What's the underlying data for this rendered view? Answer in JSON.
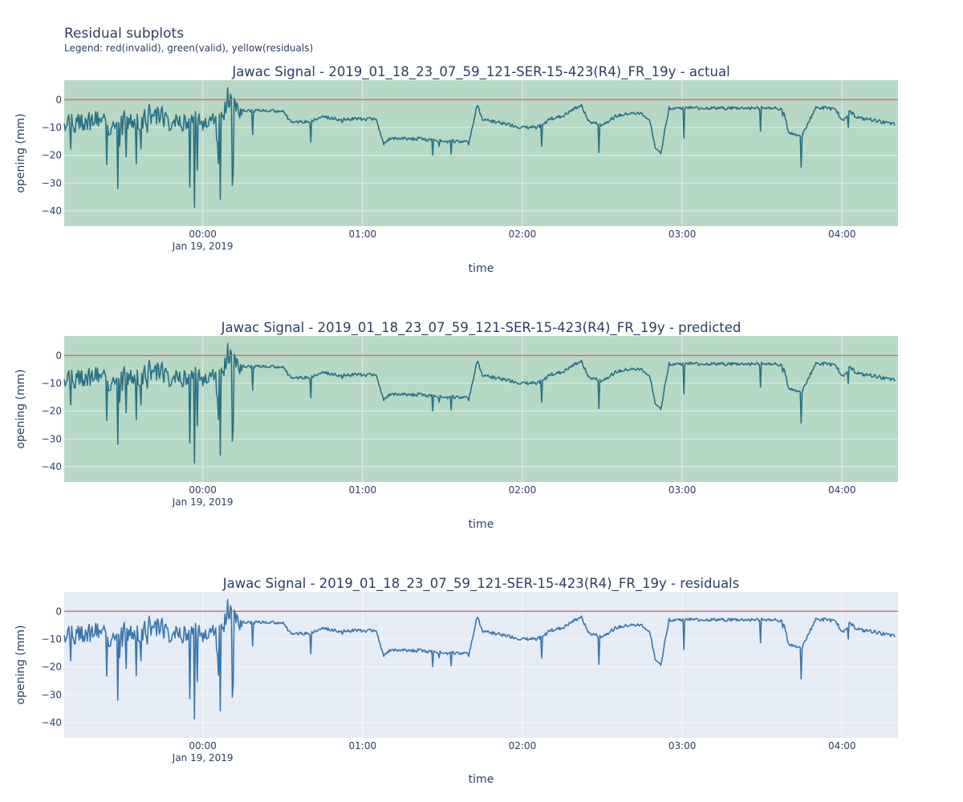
{
  "figure": {
    "title": "Residual subplots",
    "subtitle": "Legend: red(invalid), green(valid), yellow(residuals)"
  },
  "colors": {
    "valid_background": "#b7d8c5",
    "default_background": "#e5ecf6",
    "threshold_line": "#e45756",
    "series_on_valid": "#2a7186",
    "series_on_default": "#3a76ab",
    "text": "#2a3f5f"
  },
  "chart_data": [
    {
      "type": "line",
      "title": "Jawac Signal - 2019_01_18_23_07_59_121-SER-15-423(R4)_FR_19y - actual",
      "xlabel": "time",
      "ylabel": "opening (mm)",
      "background": "green(valid)",
      "x_range": [
        "2019-01-18 23:07:59",
        "2019-01-19 04:21:00"
      ],
      "x_ticks": [
        "00:00",
        "01:00",
        "02:00",
        "03:00",
        "04:00"
      ],
      "x_tick_date_label": "Jan 19, 2019",
      "ylim": [
        -45.5,
        7
      ],
      "y_ticks": [
        0,
        -10,
        -20,
        -30,
        -40
      ],
      "grid": true,
      "threshold": {
        "y": 0,
        "color": "red"
      },
      "series": [
        {
          "x": [
            "23:08",
            "23:15",
            "23:20",
            "23:25",
            "23:28",
            "23:30",
            "23:35",
            "23:40",
            "23:45",
            "23:48",
            "23:50",
            "23:55",
            "23:58",
            "00:00",
            "00:03",
            "00:06",
            "00:08",
            "00:10",
            "00:12",
            "00:15",
            "00:20",
            "00:25",
            "00:30",
            "00:33",
            "00:35",
            "00:40",
            "00:45",
            "00:50",
            "00:55",
            "01:00",
            "01:05",
            "01:08",
            "01:10",
            "01:12",
            "01:15",
            "01:20",
            "01:30",
            "01:40",
            "01:43",
            "01:45",
            "01:50",
            "02:00",
            "02:05",
            "02:08",
            "02:10",
            "02:15",
            "02:20",
            "02:22",
            "02:25",
            "02:30",
            "02:35",
            "02:40",
            "02:45",
            "02:48",
            "02:50",
            "02:52",
            "02:55",
            "03:00",
            "03:10",
            "03:20",
            "03:30",
            "03:35",
            "03:38",
            "03:40",
            "03:45",
            "03:50",
            "03:55",
            "03:58",
            "04:00",
            "04:03",
            "04:05",
            "04:08",
            "04:10",
            "04:15",
            "04:20"
          ],
          "y": [
            -8,
            -9,
            -6,
            -10,
            -8,
            -7,
            -9,
            -5,
            -6,
            -10,
            -8,
            -9,
            -7,
            -8,
            -6,
            -9,
            -4,
            0,
            -2,
            -4,
            -4,
            -4,
            -4,
            -8,
            -8,
            -8,
            -6,
            -7,
            -7,
            -7,
            -7,
            -16,
            -14,
            -14,
            -14,
            -14,
            -15,
            -15,
            -2,
            -7,
            -8,
            -10,
            -10,
            -9,
            -7,
            -6,
            -3,
            -2,
            -8,
            -9,
            -6,
            -5,
            -5,
            -8,
            -18,
            -19,
            -3,
            -3,
            -3,
            -3,
            -3,
            -3,
            -4,
            -12,
            -13,
            -3,
            -3,
            -4,
            -8,
            -4,
            -6,
            -7,
            -7,
            -8,
            -9
          ]
        }
      ]
    },
    {
      "type": "line",
      "title": "Jawac Signal - 2019_01_18_23_07_59_121-SER-15-423(R4)_FR_19y - predicted",
      "xlabel": "time",
      "ylabel": "opening (mm)",
      "background": "green(valid)",
      "x_range": [
        "2019-01-18 23:07:59",
        "2019-01-19 04:21:00"
      ],
      "x_ticks": [
        "00:00",
        "01:00",
        "02:00",
        "03:00",
        "04:00"
      ],
      "x_tick_date_label": "Jan 19, 2019",
      "ylim": [
        -45.5,
        7
      ],
      "y_ticks": [
        0,
        -10,
        -20,
        -30,
        -40
      ],
      "grid": true,
      "threshold": {
        "y": 0,
        "color": "red"
      },
      "series": [
        {
          "x": [
            "23:08",
            "23:15",
            "23:20",
            "23:25",
            "23:28",
            "23:30",
            "23:35",
            "23:40",
            "23:45",
            "23:48",
            "23:50",
            "23:55",
            "23:58",
            "00:00",
            "00:03",
            "00:06",
            "00:08",
            "00:10",
            "00:12",
            "00:15",
            "00:20",
            "00:25",
            "00:30",
            "00:33",
            "00:35",
            "00:40",
            "00:45",
            "00:50",
            "00:55",
            "01:00",
            "01:05",
            "01:08",
            "01:10",
            "01:12",
            "01:15",
            "01:20",
            "01:30",
            "01:40",
            "01:43",
            "01:45",
            "01:50",
            "02:00",
            "02:05",
            "02:08",
            "02:10",
            "02:15",
            "02:20",
            "02:22",
            "02:25",
            "02:30",
            "02:35",
            "02:40",
            "02:45",
            "02:48",
            "02:50",
            "02:52",
            "02:55",
            "03:00",
            "03:10",
            "03:20",
            "03:30",
            "03:35",
            "03:38",
            "03:40",
            "03:45",
            "03:50",
            "03:55",
            "03:58",
            "04:00",
            "04:03",
            "04:05",
            "04:08",
            "04:10",
            "04:15",
            "04:20"
          ],
          "y": [
            -8,
            -9,
            -6,
            -10,
            -8,
            -7,
            -9,
            -5,
            -6,
            -10,
            -8,
            -9,
            -7,
            -8,
            -6,
            -9,
            -4,
            0,
            -2,
            -4,
            -4,
            -4,
            -4,
            -8,
            -8,
            -8,
            -6,
            -7,
            -7,
            -7,
            -7,
            -16,
            -14,
            -14,
            -14,
            -14,
            -15,
            -15,
            -2,
            -7,
            -8,
            -10,
            -10,
            -9,
            -7,
            -6,
            -3,
            -2,
            -8,
            -9,
            -6,
            -5,
            -5,
            -8,
            -18,
            -19,
            -3,
            -3,
            -3,
            -3,
            -3,
            -3,
            -4,
            -12,
            -13,
            -3,
            -3,
            -4,
            -8,
            -4,
            -6,
            -7,
            -7,
            -8,
            -9
          ]
        }
      ]
    },
    {
      "type": "line",
      "title": "Jawac Signal - 2019_01_18_23_07_59_121-SER-15-423(R4)_FR_19y - residuals",
      "xlabel": "time",
      "ylabel": "opening (mm)",
      "background": "default",
      "x_range": [
        "2019-01-18 23:07:59",
        "2019-01-19 04:21:00"
      ],
      "x_ticks": [
        "00:00",
        "01:00",
        "02:00",
        "03:00",
        "04:00"
      ],
      "x_tick_date_label": "Jan 19, 2019",
      "ylim": [
        -45.5,
        7
      ],
      "y_ticks": [
        0,
        -10,
        -20,
        -30,
        -40
      ],
      "grid": true,
      "threshold": {
        "y": 0,
        "color": "red"
      },
      "series": [
        {
          "x": [
            "23:08",
            "23:15",
            "23:20",
            "23:25",
            "23:28",
            "23:30",
            "23:35",
            "23:40",
            "23:45",
            "23:48",
            "23:50",
            "23:55",
            "23:58",
            "00:00",
            "00:03",
            "00:06",
            "00:08",
            "00:10",
            "00:12",
            "00:15",
            "00:20",
            "00:25",
            "00:30",
            "00:33",
            "00:35",
            "00:40",
            "00:45",
            "00:50",
            "00:55",
            "01:00",
            "01:05",
            "01:08",
            "01:10",
            "01:12",
            "01:15",
            "01:20",
            "01:30",
            "01:40",
            "01:43",
            "01:45",
            "01:50",
            "02:00",
            "02:05",
            "02:08",
            "02:10",
            "02:15",
            "02:20",
            "02:22",
            "02:25",
            "02:30",
            "02:35",
            "02:40",
            "02:45",
            "02:48",
            "02:50",
            "02:52",
            "02:55",
            "03:00",
            "03:10",
            "03:20",
            "03:30",
            "03:35",
            "03:38",
            "03:40",
            "03:45",
            "03:50",
            "03:55",
            "03:58",
            "04:00",
            "04:03",
            "04:05",
            "04:08",
            "04:10",
            "04:15",
            "04:20"
          ],
          "y": [
            -8,
            -9,
            -6,
            -10,
            -8,
            -7,
            -9,
            -5,
            -6,
            -10,
            -8,
            -9,
            -7,
            -8,
            -6,
            -9,
            -4,
            0,
            -2,
            -4,
            -4,
            -4,
            -4,
            -8,
            -8,
            -8,
            -6,
            -7,
            -7,
            -7,
            -7,
            -16,
            -14,
            -14,
            -14,
            -14,
            -15,
            -15,
            -2,
            -7,
            -8,
            -10,
            -10,
            -9,
            -7,
            -6,
            -3,
            -2,
            -8,
            -9,
            -6,
            -5,
            -5,
            -8,
            -18,
            -19,
            -3,
            -3,
            -3,
            -3,
            -3,
            -3,
            -4,
            -12,
            -13,
            -3,
            -3,
            -4,
            -8,
            -4,
            -6,
            -7,
            -7,
            -8,
            -9
          ]
        }
      ]
    }
  ]
}
